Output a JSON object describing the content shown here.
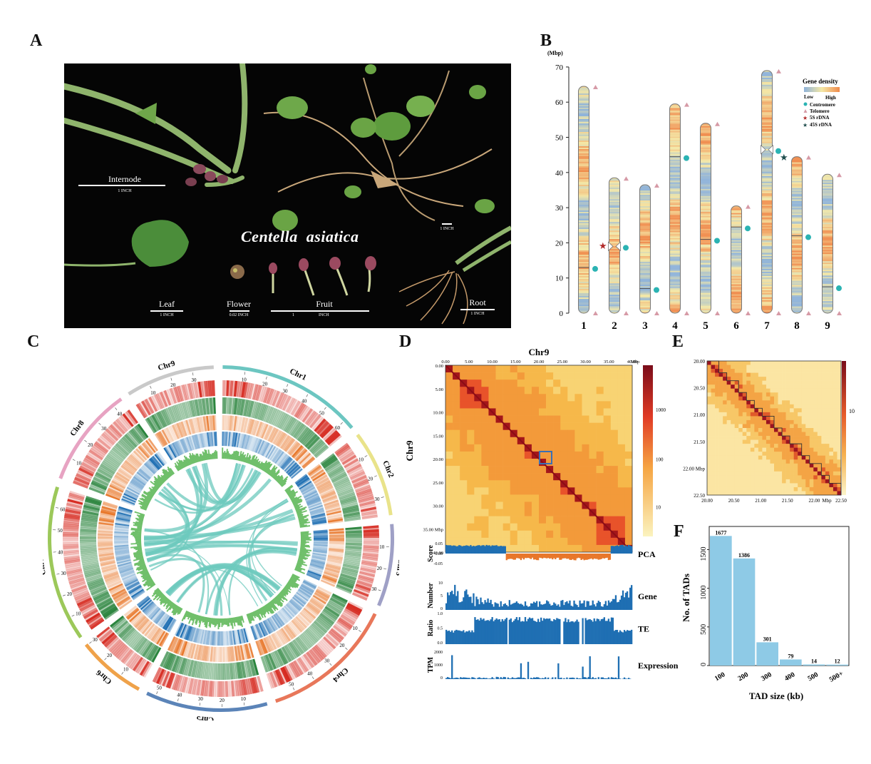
{
  "panel_letters": {
    "a": "A",
    "b": "B",
    "c": "C",
    "d": "D",
    "e": "E",
    "f": "F"
  },
  "panel_a": {
    "species_first": "Centella",
    "species_second": "asiatica",
    "labels": {
      "internode": "Internode",
      "leaf": "Leaf",
      "flower": "Flower",
      "fruit": "Fruit",
      "root": "Root"
    },
    "scales": {
      "internode": "1 INCH",
      "whole": "1 INCH",
      "leaf": "1 INCH",
      "flower": "0.02 INCH",
      "fruit_left": "1",
      "fruit_right": "INCH",
      "root": "1 INCH"
    }
  },
  "panel_b": {
    "yunit": "(Mbp)",
    "yticks": [
      "0",
      "10",
      "20",
      "30",
      "40",
      "50",
      "60",
      "70"
    ],
    "legend": {
      "title": "Gene density",
      "low": "Low",
      "high": "High",
      "centromere": "Centromere",
      "telomere": "Telomere",
      "rdna5s": "5S rDNA",
      "rdna45s": "45S rDNA"
    },
    "colors": {
      "low": "#8fb3d9",
      "high": "#f08a4b",
      "centromere": "#2bb3b3",
      "telomere": "#d69aa6",
      "rdna5s": "#b12a2a",
      "rdna45s": "#1f4d4d"
    }
  },
  "panel_c": {
    "colors": {
      "density": "#d62a20",
      "green": "#1e7d32",
      "orange": "#e8772a",
      "blue": "#1f6fb3",
      "gc": "#6fbf6a",
      "link": "#6ec9bd"
    }
  },
  "panel_d": {
    "title": "Chr9",
    "xticks": [
      "0.00",
      "5.00",
      "10.00",
      "15.00",
      "20.00",
      "25.00",
      "30.00",
      "35.00",
      "40.00"
    ],
    "xunit": "Mbp",
    "yticks": [
      "0.00",
      "5.00",
      "10.00",
      "15.00",
      "20.00",
      "25.00",
      "30.00",
      "35.00 Mbp",
      "40.00"
    ],
    "ylabel": "Chr9",
    "colorbar_ticks": [
      "1000",
      "100",
      "10"
    ],
    "tracks": {
      "pca": {
        "label": "PCA",
        "ylabel": "Score",
        "ticks": [
          "0.05",
          "0.00",
          "-0.05"
        ]
      },
      "gene": {
        "label": "Gene",
        "ylabel": "Number",
        "ticks": [
          "10",
          "5",
          "0"
        ]
      },
      "te": {
        "label": "TE",
        "ylabel": "Ratio",
        "ticks": [
          "1.0",
          "0.5",
          "0.0"
        ]
      },
      "expression": {
        "label": "Expression",
        "ylabel": "TPM",
        "ticks": [
          "2000",
          "1000",
          "0"
        ]
      }
    }
  },
  "panel_e": {
    "xticks": [
      "20.00",
      "20.50",
      "21.00",
      "21.50",
      "22.00",
      "22.50"
    ],
    "xunit": "Mbp",
    "yticks": [
      "20.00",
      "20.50",
      "21.00",
      "21.50",
      "22.00 Mbp",
      "22.50"
    ],
    "colorbar_tick": "10"
  },
  "chart_data": [
    {
      "type": "bar",
      "id": "tad_size_distribution",
      "categories": [
        "100",
        "200",
        "300",
        "400",
        "500",
        "500+"
      ],
      "values": [
        1677,
        1386,
        301,
        79,
        14,
        12
      ],
      "value_labels": [
        "1677",
        "1386",
        "301",
        "79",
        "14",
        "12"
      ],
      "xlabel": "TAD size (kb)",
      "ylabel": "No. of TADs",
      "yticks": [
        "0",
        "500",
        "1000",
        "1500"
      ],
      "ylim": [
        0,
        1800
      ],
      "color": "#8ecae6"
    },
    {
      "type": "ideogram",
      "id": "chromosome_lengths",
      "categories": [
        "1",
        "2",
        "3",
        "4",
        "5",
        "6",
        "7",
        "8",
        "9"
      ],
      "lengths_mbp": [
        64.5,
        38.5,
        36.5,
        59.5,
        54,
        30.5,
        69,
        44.5,
        39.5
      ],
      "centromere_mbp": [
        13,
        19,
        7,
        44.5,
        21,
        24.5,
        46.5,
        22,
        7.5
      ],
      "ylim": [
        0,
        70
      ]
    },
    {
      "type": "heatmap",
      "id": "chr9_hic",
      "xlim": [
        0,
        40
      ],
      "ylim": [
        0,
        40
      ],
      "zoom_region_mbp": [
        20.5,
        22.5
      ]
    }
  ]
}
